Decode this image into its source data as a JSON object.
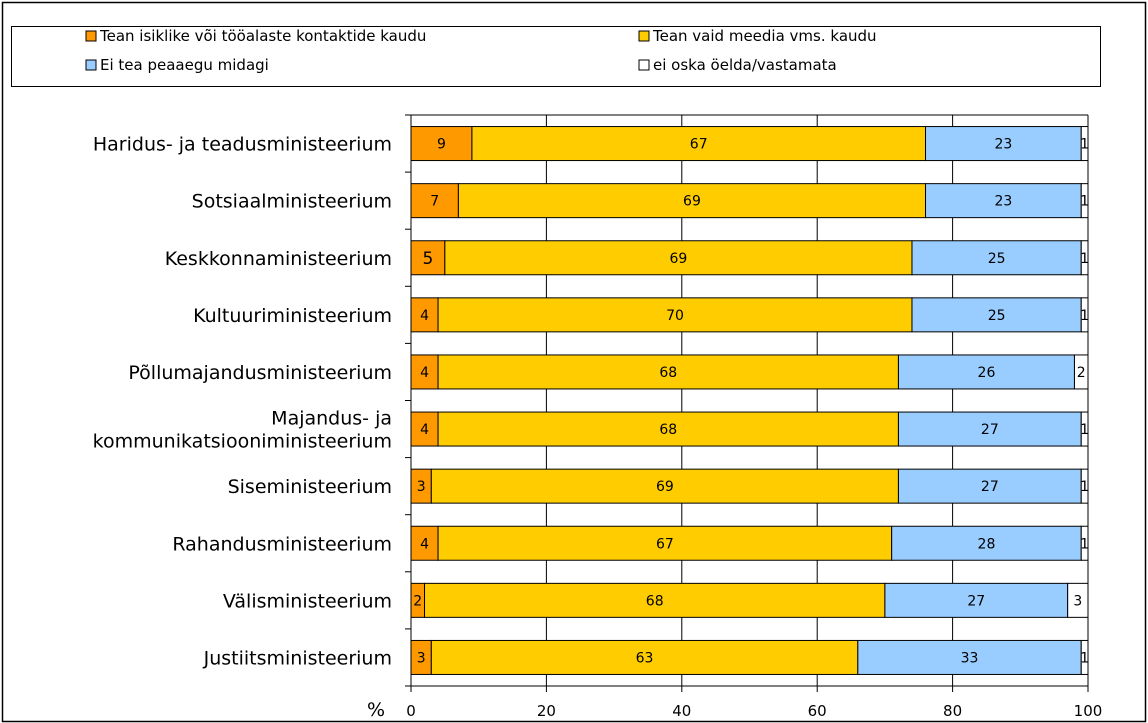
{
  "chart_data": {
    "type": "bar",
    "orientation": "horizontal",
    "stacked": true,
    "xlabel": "%",
    "xlim": [
      0,
      100
    ],
    "xticks": [
      0,
      20,
      40,
      60,
      80,
      100
    ],
    "grid": true,
    "legend_position": "top",
    "categories": [
      "Haridus- ja teadusministeerium",
      "Sotsiaalministeerium",
      "Keskkonnaministeerium",
      "Kultuuriministeerium",
      "Põllumajandusministeerium",
      "Majandus- ja kommunikatsiooniministeerium",
      "Siseministeerium",
      "Rahandusministeerium",
      "Välisministeerium",
      "Justiitsministeerium"
    ],
    "category_label_lines": [
      [
        "Haridus- ja teadusministeerium"
      ],
      [
        "Sotsiaalministeerium"
      ],
      [
        "Keskkonnaministeerium"
      ],
      [
        "Kultuuriministeerium"
      ],
      [
        "Põllumajandusministeerium"
      ],
      [
        "Majandus- ja",
        "kommunikatsiooniministeerium"
      ],
      [
        "Siseministeerium"
      ],
      [
        "Rahandusministeerium"
      ],
      [
        "Välisministeerium"
      ],
      [
        "Justiitsministeerium"
      ]
    ],
    "series": [
      {
        "name": "Tean isiklike või tööalaste kontaktide kaudu",
        "color": "#FF9900",
        "values": [
          9,
          7,
          5,
          4,
          4,
          4,
          3,
          4,
          2,
          3
        ]
      },
      {
        "name": "Tean vaid meedia vms. kaudu",
        "color": "#FFCC00",
        "values": [
          67,
          69,
          69,
          70,
          68,
          68,
          69,
          67,
          68,
          63
        ]
      },
      {
        "name": "Ei tea peaaegu midagi",
        "color": "#99CCFF",
        "values": [
          23,
          23,
          25,
          25,
          26,
          27,
          27,
          28,
          27,
          33
        ]
      },
      {
        "name": "ei oska öelda/vastamata",
        "color": "#FFFFFF",
        "values": [
          1,
          1,
          1,
          1,
          2,
          1,
          1,
          1,
          3,
          1
        ]
      }
    ]
  }
}
